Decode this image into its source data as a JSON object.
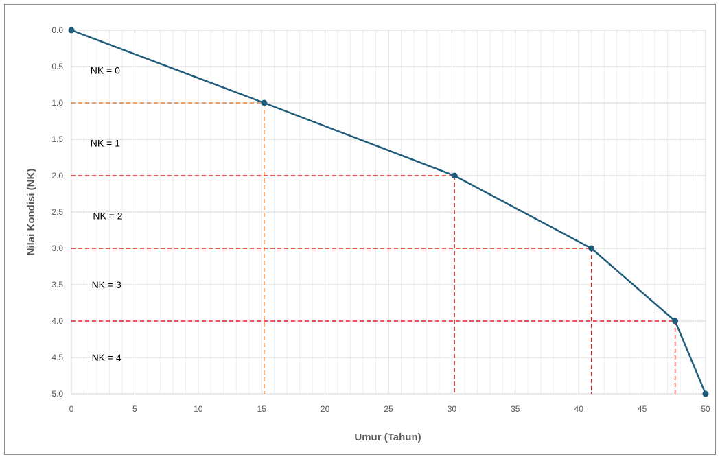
{
  "chart_data": {
    "type": "line",
    "title": "",
    "xlabel": "Umur (Tahun)",
    "ylabel": "Nilai Kondisi  (NK)",
    "xlim": [
      0,
      50
    ],
    "ylim": [
      0,
      5
    ],
    "y_inverted": true,
    "x_ticks": [
      "0",
      "5",
      "10",
      "15",
      "20",
      "25",
      "30",
      "35",
      "40",
      "45",
      "50"
    ],
    "y_ticks": [
      "0.0",
      "0.5",
      "1.0",
      "1.5",
      "2.0",
      "2.5",
      "3.0",
      "3.5",
      "4.0",
      "4.5",
      "5.0"
    ],
    "grid": true,
    "series": [
      {
        "color": "#1f5b7a",
        "points": [
          {
            "x": 0,
            "y": 0
          },
          {
            "x": 15.2,
            "y": 1.0
          },
          {
            "x": 30.2,
            "y": 2.0
          },
          {
            "x": 41.0,
            "y": 3.0
          },
          {
            "x": 47.6,
            "y": 4.0
          },
          {
            "x": 50,
            "y": 5.0
          }
        ]
      }
    ],
    "reference_lines": [
      {
        "x": 15.2,
        "y": 1.0,
        "color": "#e3803a"
      },
      {
        "x": 30.2,
        "y": 2.0,
        "color": "#e02020"
      },
      {
        "x": 41.0,
        "y": 3.0,
        "color": "#e02020"
      },
      {
        "x": 47.6,
        "y": 4.0,
        "color": "#e02020"
      }
    ],
    "annotations": [
      {
        "text": "NK = 0",
        "x": 1.5,
        "y": 0.55
      },
      {
        "text": "NK = 1",
        "x": 1.5,
        "y": 1.55
      },
      {
        "text": "NK = 2",
        "x": 1.7,
        "y": 2.55
      },
      {
        "text": "NK = 3",
        "x": 1.6,
        "y": 3.5
      },
      {
        "text": "NK = 4",
        "x": 1.6,
        "y": 4.5
      }
    ]
  }
}
